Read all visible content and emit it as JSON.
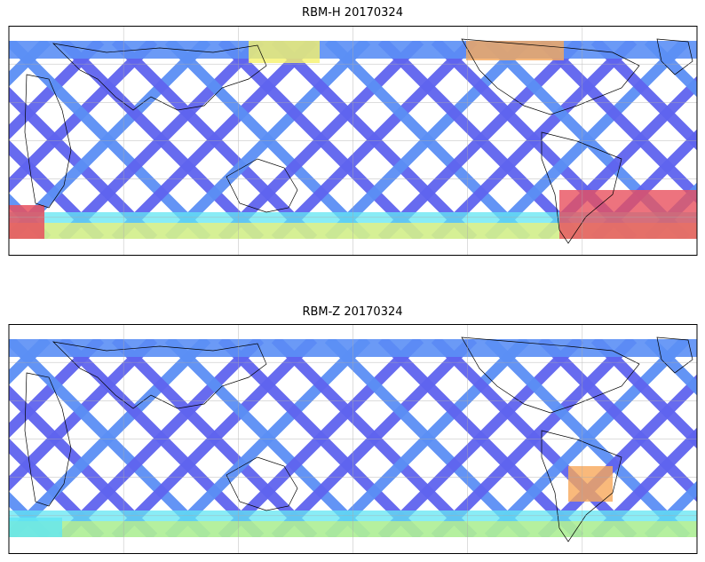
{
  "panels": [
    {
      "title": "RBM-H 20170324",
      "colors": {
        "swath": "#5f64ef",
        "swath_light": "#5b8ff5",
        "cyan": "#62e6f3",
        "yellow": "#f6f26c",
        "orange": "#f7a85a",
        "red": "#e8505e"
      },
      "hot_south": true
    },
    {
      "title": "RBM-Z 20170324",
      "colors": {
        "swath": "#5f64ef",
        "swath_light": "#5b8ff5",
        "cyan": "#62e6f3",
        "yellow": "#c7f27a",
        "orange": "#f7a85a",
        "red": "#f7a85a"
      },
      "hot_south": false
    }
  ],
  "grid": "on",
  "coastlines": "on"
}
